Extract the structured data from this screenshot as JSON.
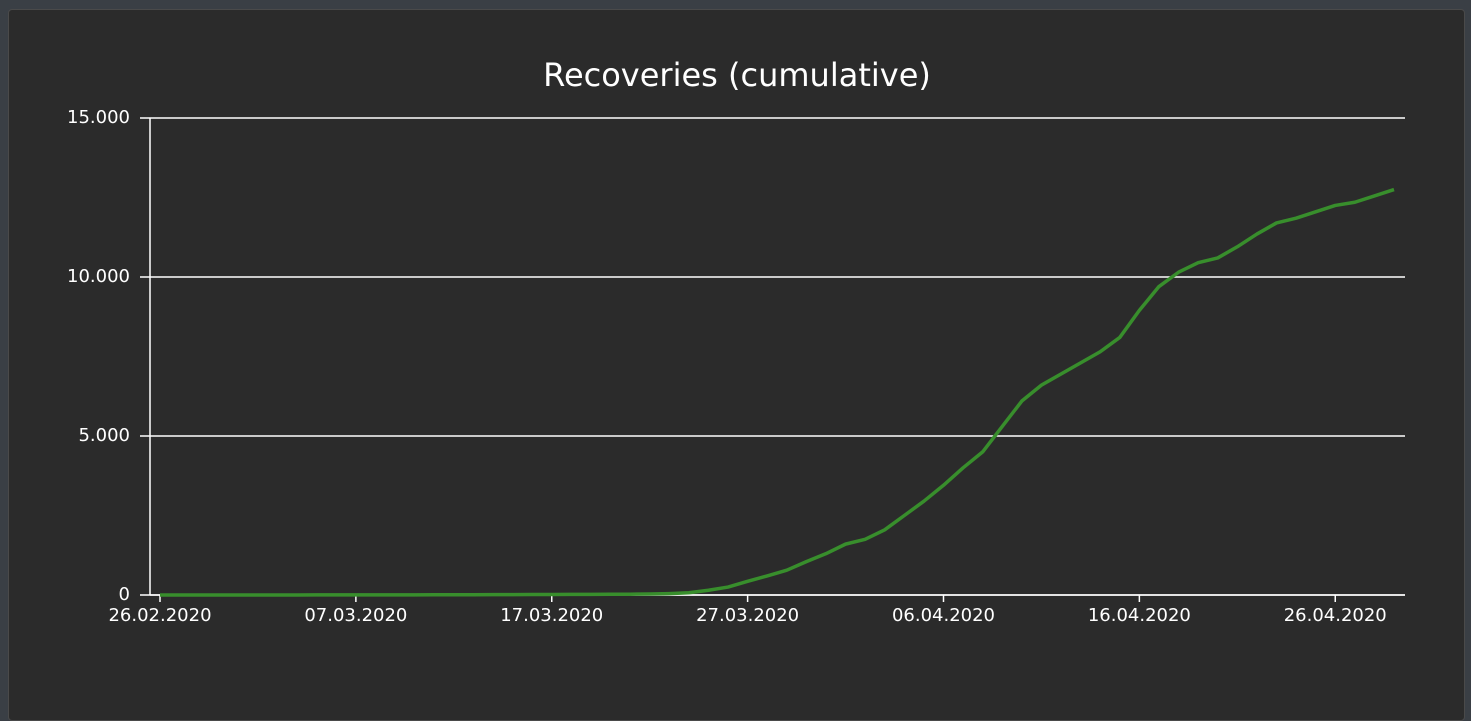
{
  "chart_data": {
    "type": "line",
    "title": "Recoveries (cumulative)",
    "x": [
      "26.02.2020",
      "27.02.2020",
      "28.02.2020",
      "29.02.2020",
      "01.03.2020",
      "02.03.2020",
      "03.03.2020",
      "04.03.2020",
      "05.03.2020",
      "06.03.2020",
      "07.03.2020",
      "08.03.2020",
      "09.03.2020",
      "10.03.2020",
      "11.03.2020",
      "12.03.2020",
      "13.03.2020",
      "14.03.2020",
      "15.03.2020",
      "16.03.2020",
      "17.03.2020",
      "18.03.2020",
      "19.03.2020",
      "20.03.2020",
      "21.03.2020",
      "22.03.2020",
      "23.03.2020",
      "24.03.2020",
      "25.03.2020",
      "26.03.2020",
      "27.03.2020",
      "28.03.2020",
      "29.03.2020",
      "30.03.2020",
      "31.03.2020",
      "01.04.2020",
      "02.04.2020",
      "03.04.2020",
      "04.04.2020",
      "05.04.2020",
      "06.04.2020",
      "07.04.2020",
      "08.04.2020",
      "09.04.2020",
      "10.04.2020",
      "11.04.2020",
      "12.04.2020",
      "13.04.2020",
      "14.04.2020",
      "15.04.2020",
      "16.04.2020",
      "17.04.2020",
      "18.04.2020",
      "19.04.2020",
      "20.04.2020",
      "21.04.2020",
      "22.04.2020",
      "23.04.2020",
      "24.04.2020",
      "25.04.2020",
      "26.04.2020",
      "27.04.2020",
      "28.04.2020",
      "29.04.2020"
    ],
    "series": [
      {
        "color": "#388e2c",
        "values": [
          0,
          0,
          0,
          0,
          1,
          1,
          1,
          1,
          2,
          2,
          3,
          3,
          4,
          5,
          6,
          7,
          8,
          10,
          12,
          14,
          16,
          18,
          20,
          22,
          25,
          30,
          45,
          70,
          150,
          250,
          430,
          600,
          780,
          1050,
          1300,
          1600,
          1750,
          2050,
          2500,
          2950,
          3450,
          4000,
          4500,
          5300,
          6100,
          6600,
          6950,
          7300,
          7650,
          8100,
          8950,
          9700,
          10150,
          10450,
          10600,
          10950,
          11350,
          11700,
          11850,
          12050,
          12250,
          12350,
          12550,
          12750
        ]
      }
    ],
    "xticks": [
      "26.02.2020",
      "07.03.2020",
      "17.03.2020",
      "27.03.2020",
      "06.04.2020",
      "16.04.2020",
      "26.04.2020"
    ],
    "ylim": [
      0,
      15000
    ],
    "yticks": [
      0,
      {
        "value": 5000,
        "label": "5.000"
      },
      {
        "value": 10000,
        "label": "10.000"
      },
      {
        "value": 15000,
        "label": "15.000"
      }
    ],
    "grid": true
  }
}
